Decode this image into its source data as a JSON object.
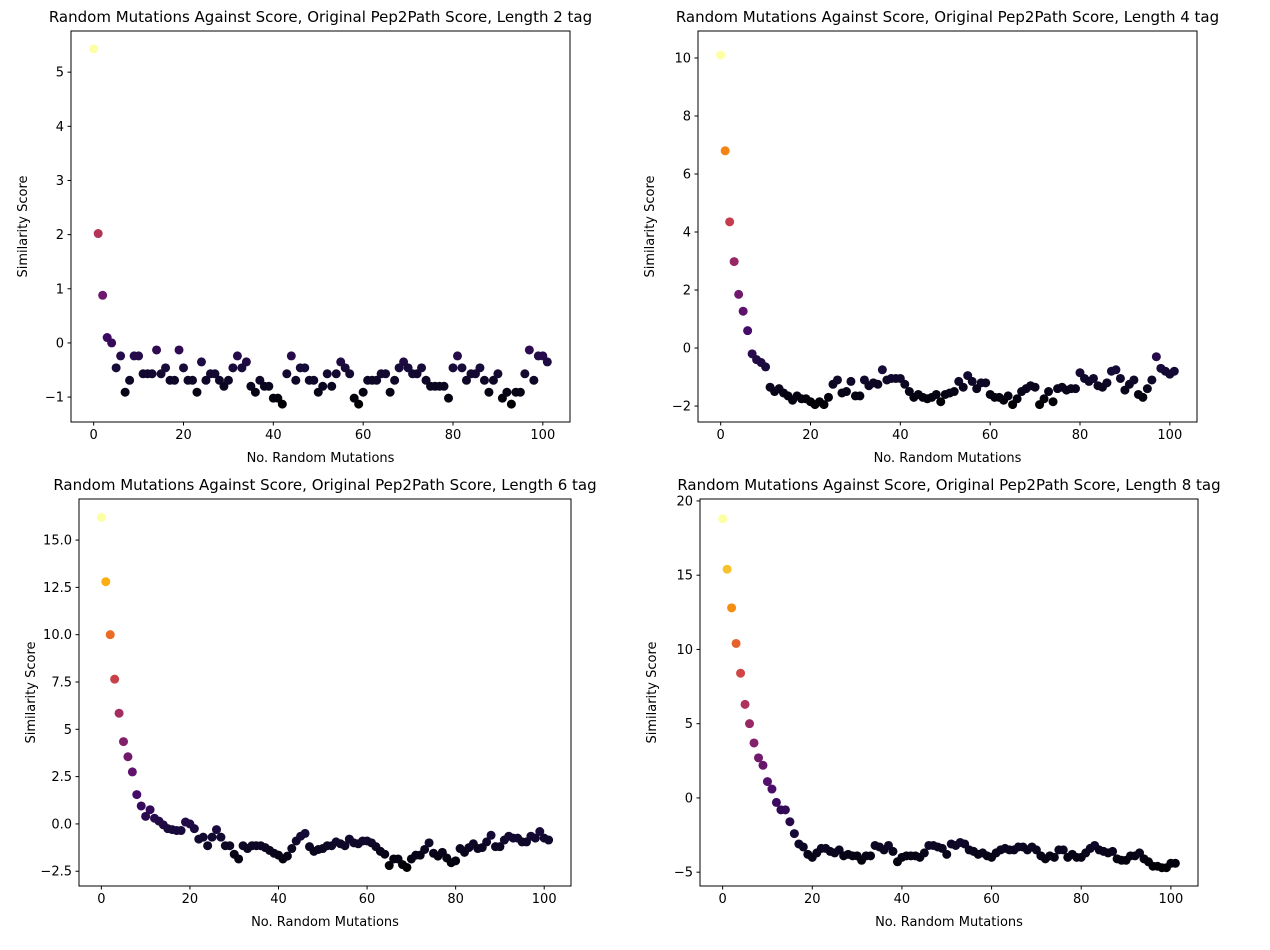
{
  "chart_data": [
    {
      "type": "scatter",
      "title": "Random Mutations Against Score, Original Pep2Path Score, Length 2 tag",
      "x_label": "No. Random Mutations",
      "y_label": "Similarity Score",
      "colormap": "inferno",
      "x": [
        0,
        1,
        2,
        3,
        4,
        5,
        6,
        7,
        8,
        9,
        10,
        11,
        12,
        13,
        14,
        15,
        16,
        17,
        18,
        19,
        20,
        21,
        22,
        23,
        24,
        25,
        26,
        27,
        28,
        29,
        30,
        31,
        32,
        33,
        34,
        35,
        36,
        37,
        38,
        39,
        40,
        41,
        42,
        43,
        44,
        45,
        46,
        47,
        48,
        49,
        50,
        51,
        52,
        53,
        54,
        55,
        56,
        57,
        58,
        59,
        60,
        61,
        62,
        63,
        64,
        65,
        66,
        67,
        68,
        69,
        70,
        71,
        72,
        73,
        74,
        75,
        76,
        77,
        78,
        79,
        80,
        81,
        82,
        83,
        84,
        85,
        86,
        87,
        88,
        89,
        90,
        91,
        92,
        93,
        94,
        95,
        96,
        97,
        98,
        99,
        100,
        101
      ],
      "values": [
        5.43,
        2.02,
        0.88,
        0.1,
        0.0,
        -0.46,
        -0.24,
        -0.91,
        -0.69,
        -0.24,
        -0.24,
        -0.57,
        -0.57,
        -0.57,
        -0.13,
        -0.57,
        -0.46,
        -0.69,
        -0.69,
        -0.13,
        -0.46,
        -0.69,
        -0.69,
        -0.91,
        -0.35,
        -0.69,
        -0.57,
        -0.57,
        -0.69,
        -0.8,
        -0.69,
        -0.46,
        -0.24,
        -0.46,
        -0.35,
        -0.8,
        -0.91,
        -0.69,
        -0.8,
        -0.8,
        -1.02,
        -1.02,
        -1.13,
        -0.57,
        -0.24,
        -0.69,
        -0.46,
        -0.46,
        -0.69,
        -0.69,
        -0.91,
        -0.8,
        -0.57,
        -0.8,
        -0.57,
        -0.35,
        -0.46,
        -0.57,
        -1.02,
        -1.13,
        -0.91,
        -0.69,
        -0.69,
        -0.69,
        -0.57,
        -0.57,
        -0.91,
        -0.69,
        -0.46,
        -0.35,
        -0.46,
        -0.57,
        -0.57,
        -0.46,
        -0.69,
        -0.8,
        -0.8,
        -0.8,
        -0.8,
        -1.02,
        -0.46,
        -0.24,
        -0.46,
        -0.69,
        -0.57,
        -0.57,
        -0.46,
        -0.69,
        -0.91,
        -0.69,
        -0.57,
        -1.02,
        -0.91,
        -1.13,
        -0.91,
        -0.91,
        -0.57,
        -0.13,
        -0.69,
        -0.24,
        -0.24,
        -0.35
      ],
      "xlim": [
        -5.05,
        106.05
      ],
      "ylim": [
        -1.46,
        5.76
      ],
      "xticks": [
        0,
        20,
        40,
        60,
        80,
        100
      ],
      "yticks": [
        {
          "value": -1,
          "label": "−1"
        },
        0,
        1,
        2,
        3,
        4,
        5
      ]
    },
    {
      "type": "scatter",
      "title": "Random Mutations Against Score, Original Pep2Path Score, Length 4 tag",
      "x_label": "No. Random Mutations",
      "y_label": "Similarity Score",
      "colormap": "inferno",
      "x": [
        0,
        1,
        2,
        3,
        4,
        5,
        6,
        7,
        8,
        9,
        10,
        11,
        12,
        13,
        14,
        15,
        16,
        17,
        18,
        19,
        20,
        21,
        22,
        23,
        24,
        25,
        26,
        27,
        28,
        29,
        30,
        31,
        32,
        33,
        34,
        35,
        36,
        37,
        38,
        39,
        40,
        41,
        42,
        43,
        44,
        45,
        46,
        47,
        48,
        49,
        50,
        51,
        52,
        53,
        54,
        55,
        56,
        57,
        58,
        59,
        60,
        61,
        62,
        63,
        64,
        65,
        66,
        67,
        68,
        69,
        70,
        71,
        72,
        73,
        74,
        75,
        76,
        77,
        78,
        79,
        80,
        81,
        82,
        83,
        84,
        85,
        86,
        87,
        88,
        89,
        90,
        91,
        92,
        93,
        94,
        95,
        96,
        97,
        98,
        99,
        100,
        101
      ],
      "values": [
        10.1,
        6.8,
        4.35,
        2.98,
        1.85,
        1.27,
        0.6,
        -0.2,
        -0.4,
        -0.5,
        -0.65,
        -1.35,
        -1.5,
        -1.4,
        -1.55,
        -1.65,
        -1.8,
        -1.65,
        -1.75,
        -1.75,
        -1.85,
        -1.95,
        -1.85,
        -1.95,
        -1.7,
        -1.25,
        -1.1,
        -1.55,
        -1.5,
        -1.15,
        -1.65,
        -1.65,
        -1.1,
        -1.3,
        -1.2,
        -1.25,
        -0.75,
        -1.1,
        -1.05,
        -1.05,
        -1.05,
        -1.25,
        -1.5,
        -1.7,
        -1.6,
        -1.7,
        -1.75,
        -1.7,
        -1.6,
        -1.85,
        -1.6,
        -1.55,
        -1.5,
        -1.15,
        -1.35,
        -0.95,
        -1.15,
        -1.4,
        -1.2,
        -1.2,
        -1.6,
        -1.7,
        -1.7,
        -1.8,
        -1.65,
        -1.95,
        -1.75,
        -1.5,
        -1.4,
        -1.3,
        -1.35,
        -1.95,
        -1.75,
        -1.5,
        -1.85,
        -1.4,
        -1.35,
        -1.45,
        -1.4,
        -1.4,
        -0.85,
        -1.05,
        -1.15,
        -1.05,
        -1.3,
        -1.35,
        -1.2,
        -0.8,
        -0.75,
        -1.05,
        -1.45,
        -1.25,
        -1.1,
        -1.6,
        -1.7,
        -1.4,
        -1.1,
        -0.3,
        -0.7,
        -0.8,
        -0.9,
        -0.8
      ],
      "xlim": [
        -5.05,
        106.05
      ],
      "ylim": [
        -2.55,
        10.93
      ],
      "xticks": [
        0,
        20,
        40,
        60,
        80,
        100
      ],
      "yticks": [
        {
          "value": -2,
          "label": "−2"
        },
        0,
        2,
        4,
        6,
        8,
        10
      ]
    },
    {
      "type": "scatter",
      "title": "Random Mutations Against Score, Original Pep2Path Score, Length 6 tag",
      "x_label": "No. Random Mutations",
      "y_label": "Similarity Score",
      "colormap": "inferno",
      "x": [
        0,
        1,
        2,
        3,
        4,
        5,
        6,
        7,
        8,
        9,
        10,
        11,
        12,
        13,
        14,
        15,
        16,
        17,
        18,
        19,
        20,
        21,
        22,
        23,
        24,
        25,
        26,
        27,
        28,
        29,
        30,
        31,
        32,
        33,
        34,
        35,
        36,
        37,
        38,
        39,
        40,
        41,
        42,
        43,
        44,
        45,
        46,
        47,
        48,
        49,
        50,
        51,
        52,
        53,
        54,
        55,
        56,
        57,
        58,
        59,
        60,
        61,
        62,
        63,
        64,
        65,
        66,
        67,
        68,
        69,
        70,
        71,
        72,
        73,
        74,
        75,
        76,
        77,
        78,
        79,
        80,
        81,
        82,
        83,
        84,
        85,
        86,
        87,
        88,
        89,
        90,
        91,
        92,
        93,
        94,
        95,
        96,
        97,
        98,
        99,
        100,
        101
      ],
      "values": [
        16.2,
        12.8,
        10.0,
        7.65,
        5.85,
        4.35,
        3.55,
        2.75,
        1.55,
        0.95,
        0.4,
        0.75,
        0.3,
        0.15,
        -0.05,
        -0.25,
        -0.3,
        -0.35,
        -0.35,
        0.1,
        0.0,
        -0.25,
        -0.8,
        -0.7,
        -1.15,
        -0.7,
        -0.3,
        -0.7,
        -1.15,
        -1.15,
        -1.6,
        -1.85,
        -1.15,
        -1.3,
        -1.15,
        -1.15,
        -1.15,
        -1.25,
        -1.4,
        -1.55,
        -1.65,
        -1.85,
        -1.7,
        -1.3,
        -0.9,
        -0.65,
        -0.5,
        -1.2,
        -1.45,
        -1.35,
        -1.3,
        -1.15,
        -1.15,
        -0.95,
        -1.05,
        -1.15,
        -0.8,
        -1.0,
        -1.05,
        -0.9,
        -0.9,
        -1.0,
        -1.2,
        -1.45,
        -1.6,
        -2.2,
        -1.85,
        -1.85,
        -2.15,
        -2.3,
        -1.85,
        -1.65,
        -1.65,
        -1.35,
        -1.0,
        -1.55,
        -1.7,
        -1.5,
        -1.8,
        -2.05,
        -1.95,
        -1.3,
        -1.5,
        -1.25,
        -1.05,
        -1.3,
        -1.25,
        -0.95,
        -0.6,
        -1.2,
        -1.2,
        -0.85,
        -0.65,
        -0.75,
        -0.75,
        -0.95,
        -0.95,
        -0.65,
        -0.75,
        -0.4,
        -0.75,
        -0.85
      ],
      "xlim": [
        -5.05,
        106.05
      ],
      "ylim": [
        -3.28,
        17.17
      ],
      "xticks": [
        0,
        20,
        40,
        60,
        80,
        100
      ],
      "yticks": [
        {
          "value": -2.5,
          "label": "−2.5"
        },
        {
          "value": 0,
          "label": "0.0"
        },
        2.5,
        5,
        {
          "value": 7.5,
          "label": "7.5"
        },
        {
          "value": 10,
          "label": "10.0"
        },
        12.5,
        {
          "value": 15,
          "label": "15.0"
        }
      ]
    },
    {
      "type": "scatter",
      "title": "Random Mutations Against Score, Original Pep2Path Score, Length 8 tag",
      "x_label": "No. Random Mutations",
      "y_label": "Similarity Score",
      "colormap": "inferno",
      "x": [
        0,
        1,
        2,
        3,
        4,
        5,
        6,
        7,
        8,
        9,
        10,
        11,
        12,
        13,
        14,
        15,
        16,
        17,
        18,
        19,
        20,
        21,
        22,
        23,
        24,
        25,
        26,
        27,
        28,
        29,
        30,
        31,
        32,
        33,
        34,
        35,
        36,
        37,
        38,
        39,
        40,
        41,
        42,
        43,
        44,
        45,
        46,
        47,
        48,
        49,
        50,
        51,
        52,
        53,
        54,
        55,
        56,
        57,
        58,
        59,
        60,
        61,
        62,
        63,
        64,
        65,
        66,
        67,
        68,
        69,
        70,
        71,
        72,
        73,
        74,
        75,
        76,
        77,
        78,
        79,
        80,
        81,
        82,
        83,
        84,
        85,
        86,
        87,
        88,
        89,
        90,
        91,
        92,
        93,
        94,
        95,
        96,
        97,
        98,
        99,
        100,
        101
      ],
      "values": [
        18.8,
        15.4,
        12.8,
        10.4,
        8.4,
        6.3,
        5.0,
        3.7,
        2.7,
        2.2,
        1.1,
        0.6,
        -0.3,
        -0.8,
        -0.8,
        -1.6,
        -2.4,
        -3.1,
        -3.3,
        -3.8,
        -4.0,
        -3.7,
        -3.4,
        -3.4,
        -3.6,
        -3.7,
        -3.5,
        -3.9,
        -3.8,
        -3.9,
        -3.9,
        -4.2,
        -3.9,
        -3.9,
        -3.2,
        -3.3,
        -3.5,
        -3.2,
        -3.6,
        -4.3,
        -4.0,
        -3.9,
        -3.9,
        -3.9,
        -4.0,
        -3.7,
        -3.2,
        -3.2,
        -3.3,
        -3.4,
        -3.8,
        -3.1,
        -3.2,
        -3.0,
        -3.1,
        -3.5,
        -3.6,
        -3.8,
        -3.7,
        -3.9,
        -4.0,
        -3.7,
        -3.5,
        -3.4,
        -3.5,
        -3.5,
        -3.3,
        -3.3,
        -3.5,
        -3.3,
        -3.5,
        -3.9,
        -4.1,
        -3.9,
        -4.0,
        -3.5,
        -3.5,
        -4.0,
        -3.8,
        -4.0,
        -4.0,
        -3.7,
        -3.4,
        -3.2,
        -3.5,
        -3.6,
        -3.7,
        -3.6,
        -4.1,
        -4.2,
        -4.2,
        -3.9,
        -3.9,
        -3.7,
        -4.1,
        -4.3,
        -4.6,
        -4.6,
        -4.7,
        -4.7,
        -4.4,
        -4.4
      ],
      "xlim": [
        -5.05,
        106.05
      ],
      "ylim": [
        -5.93,
        20.13
      ],
      "xticks": [
        0,
        20,
        40,
        60,
        80,
        100
      ],
      "yticks": [
        {
          "value": -5,
          "label": "−5"
        },
        0,
        5,
        10,
        15,
        20
      ]
    }
  ]
}
